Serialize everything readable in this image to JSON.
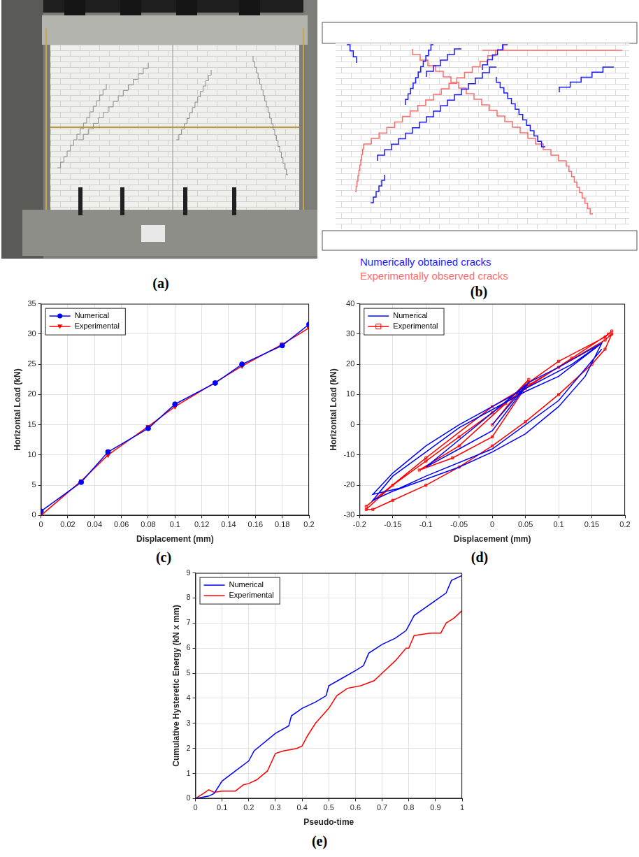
{
  "panels": [
    {
      "label": "(a)"
    },
    {
      "label": "(b)",
      "legend": [
        {
          "text": "Numerically obtained cracks",
          "color": "#1a1aff"
        },
        {
          "text": "Experimentally observed cracks",
          "color": "#ff6b6b"
        }
      ]
    }
  ],
  "chart_data": [
    {
      "label": "(c)",
      "type": "line",
      "x_label": "Displacement (mm)",
      "y_label": "Horizontal Load (kN)",
      "xlim": [
        0,
        0.2
      ],
      "xticks": [
        0,
        0.02,
        0.04,
        0.06,
        0.08,
        0.1,
        0.12,
        0.14,
        0.16,
        0.18,
        0.2
      ],
      "ylim": [
        0,
        35
      ],
      "yticks": [
        0,
        5,
        10,
        15,
        20,
        25,
        30,
        35
      ],
      "grid": true,
      "legend": "top-left",
      "series": [
        {
          "name": "Numerical",
          "color": "#0000ff",
          "marker": "circle",
          "x": [
            0,
            0.03,
            0.05,
            0.08,
            0.1,
            0.13,
            0.15,
            0.18,
            0.2
          ],
          "values": [
            0.7,
            5.5,
            10.5,
            14.4,
            18.4,
            21.9,
            25,
            28.1,
            31.6
          ]
        },
        {
          "name": "Experimental",
          "color": "#ff0000",
          "marker": "triangle-down",
          "x": [
            0,
            0.03,
            0.05,
            0.08,
            0.1,
            0.13,
            0.15,
            0.18,
            0.2
          ],
          "values": [
            0,
            5.7,
            10,
            14.7,
            18,
            22,
            24.7,
            28.3,
            31
          ]
        }
      ]
    },
    {
      "label": "(d)",
      "type": "line",
      "x_label": "Displacement (mm)",
      "y_label": "Horizontal Load (kN)",
      "xlim": [
        -0.2,
        0.2
      ],
      "xticks": [
        -0.2,
        -0.15,
        -0.1,
        -0.05,
        0,
        0.05,
        0.1,
        0.15,
        0.2
      ],
      "ylim": [
        -30,
        40
      ],
      "yticks": [
        -30,
        -20,
        -10,
        0,
        10,
        20,
        30,
        40
      ],
      "grid": true,
      "legend": "top-left",
      "series": [
        {
          "name": "Numerical",
          "color": "#0000ff",
          "marker": "none",
          "x": [
            0,
            0.055,
            0,
            -0.05,
            -0.1,
            -0.05,
            0,
            0.055,
            0.1,
            0.165,
            0.1,
            0.05,
            0,
            -0.05,
            -0.1,
            -0.15,
            -0.18,
            -0.15,
            -0.1,
            -0.05,
            0,
            0.05,
            0.1,
            0.14,
            0.165,
            0.12,
            0.05,
            0,
            -0.05,
            -0.1,
            -0.15,
            -0.18,
            -0.14,
            -0.1,
            0,
            0.1,
            0.165
          ],
          "values": [
            0,
            14,
            4,
            -5,
            -14,
            -8,
            -2,
            14,
            19,
            27,
            16,
            11,
            5,
            -1,
            -9,
            -17,
            -25,
            -22,
            -18,
            -14,
            -9,
            -3,
            6,
            16,
            27,
            20,
            12,
            6,
            0,
            -7,
            -16,
            -23,
            -21,
            -17,
            -8,
            8,
            25
          ]
        },
        {
          "name": "Experimental",
          "color": "#ff0000",
          "marker": "square",
          "x": [
            0,
            0.055,
            0.02,
            -0.05,
            -0.11,
            -0.06,
            0,
            0.055,
            0.1,
            0.17,
            0.18,
            0.175,
            0.12,
            0.05,
            0,
            -0.05,
            -0.1,
            -0.15,
            -0.19,
            -0.18,
            -0.15,
            -0.1,
            -0.05,
            0,
            0.05,
            0.1,
            0.15,
            0.17,
            0.18,
            0.17,
            0.1,
            0,
            -0.1,
            -0.19
          ],
          "values": [
            0,
            15,
            7,
            -7,
            -15,
            -11,
            -4,
            14,
            21,
            29,
            31,
            30,
            22,
            12,
            4,
            -4,
            -12,
            -20,
            -28,
            -28,
            -25,
            -20,
            -14,
            -7,
            1,
            10,
            20,
            25,
            30,
            28,
            19,
            6,
            -11,
            -27
          ]
        }
      ]
    },
    {
      "label": "(e)",
      "type": "line",
      "x_label": "Pseudo-time",
      "y_label": "Cumulative Hysteretic Energy (kN x mm)",
      "xlim": [
        0,
        1
      ],
      "xticks": [
        0,
        0.1,
        0.2,
        0.3,
        0.4,
        0.5,
        0.6,
        0.7,
        0.8,
        0.9,
        1
      ],
      "ylim": [
        0,
        9
      ],
      "yticks": [
        0,
        1,
        2,
        3,
        4,
        5,
        6,
        7,
        8,
        9
      ],
      "grid": true,
      "legend": "top-left",
      "series": [
        {
          "name": "Numerical",
          "color": "#0000ff",
          "marker": "none",
          "x": [
            0,
            0.05,
            0.07,
            0.1,
            0.15,
            0.2,
            0.22,
            0.3,
            0.35,
            0.36,
            0.4,
            0.45,
            0.49,
            0.5,
            0.55,
            0.6,
            0.63,
            0.65,
            0.7,
            0.75,
            0.79,
            0.82,
            0.9,
            0.94,
            0.96,
            1
          ],
          "values": [
            0,
            0.1,
            0.2,
            0.7,
            1.1,
            1.5,
            1.9,
            2.6,
            2.9,
            3.3,
            3.6,
            3.85,
            4.1,
            4.5,
            4.8,
            5.1,
            5.3,
            5.8,
            6.15,
            6.4,
            6.7,
            7.3,
            7.9,
            8.2,
            8.7,
            8.9
          ]
        },
        {
          "name": "Experimental",
          "color": "#ff0000",
          "marker": "none",
          "x": [
            0,
            0.03,
            0.05,
            0.07,
            0.1,
            0.15,
            0.18,
            0.2,
            0.23,
            0.27,
            0.3,
            0.33,
            0.38,
            0.4,
            0.42,
            0.45,
            0.5,
            0.53,
            0.57,
            0.62,
            0.67,
            0.7,
            0.75,
            0.79,
            0.8,
            0.82,
            0.85,
            0.88,
            0.92,
            0.94,
            0.97,
            1
          ],
          "values": [
            0,
            0.2,
            0.35,
            0.25,
            0.3,
            0.3,
            0.55,
            0.6,
            0.75,
            1.1,
            1.8,
            1.9,
            2,
            2.1,
            2.5,
            3,
            3.6,
            4.1,
            4.4,
            4.5,
            4.7,
            5,
            5.5,
            6,
            6,
            6.5,
            6.55,
            6.6,
            6.6,
            7,
            7.2,
            7.5
          ]
        }
      ]
    }
  ]
}
